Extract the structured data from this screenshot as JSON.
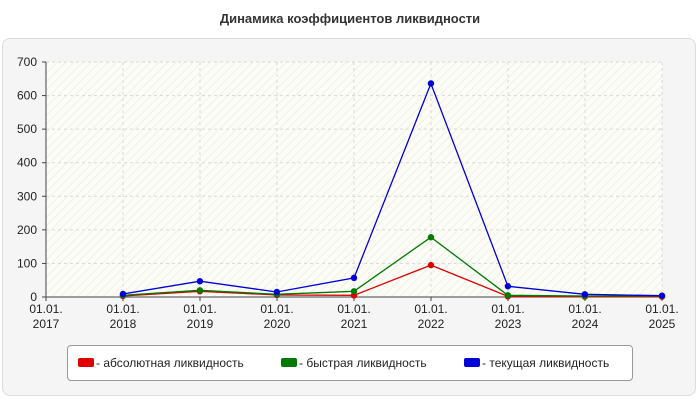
{
  "chart_data": {
    "type": "line",
    "title": "Динамика коэффициентов ликвидности",
    "xlabel": "",
    "ylabel": "",
    "x_tick_labels": [
      [
        "01.01.",
        "2017"
      ],
      [
        "01.01.",
        "2018"
      ],
      [
        "01.01.",
        "2019"
      ],
      [
        "01.01.",
        "2020"
      ],
      [
        "01.01.",
        "2021"
      ],
      [
        "01.01.",
        "2022"
      ],
      [
        "01.01.",
        "2023"
      ],
      [
        "01.01.",
        "2024"
      ],
      [
        "01.01.",
        "2025"
      ]
    ],
    "x": [
      "2018-01-01",
      "2019-01-01",
      "2020-01-01",
      "2021-01-01",
      "2022-01-01",
      "2023-01-01",
      "2024-01-01",
      "2025-01-01"
    ],
    "xlim": [
      "2017-01-01",
      "2025-01-01"
    ],
    "y_ticks": [
      0,
      100,
      200,
      300,
      400,
      500,
      600,
      700
    ],
    "ylim": [
      0,
      700
    ],
    "grid": true,
    "legend_position": "bottom",
    "series": [
      {
        "name": "- абсолютная ликвидность",
        "color": "#e00000",
        "values": [
          3,
          17,
          6,
          5,
          95,
          2,
          1,
          1
        ]
      },
      {
        "name": "- быстрая ликвидность",
        "color": "#007a00",
        "values": [
          5,
          20,
          8,
          17,
          178,
          5,
          3,
          3
        ]
      },
      {
        "name": "- текущая ликвидность",
        "color": "#0000d8",
        "values": [
          9,
          47,
          15,
          57,
          636,
          32,
          8,
          4
        ]
      }
    ]
  }
}
